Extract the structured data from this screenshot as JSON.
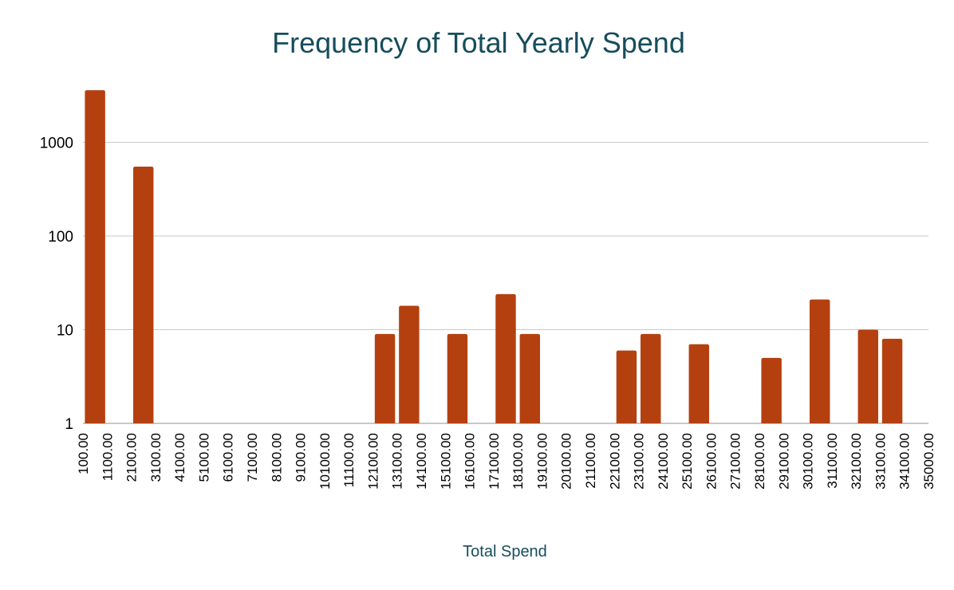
{
  "chart_data": {
    "type": "bar",
    "title": "Frequency of Total Yearly Spend",
    "xlabel": "Total Spend",
    "ylabel": "",
    "yscale": "log",
    "ylim": [
      1,
      4000
    ],
    "yticks": [
      1,
      10,
      100,
      1000
    ],
    "ytick_labels": [
      "1",
      "10",
      "100",
      "1000"
    ],
    "grid": true,
    "legend": "none",
    "bar_color": "#b5400f",
    "categories": [
      "100.00",
      "1100.00",
      "2100.00",
      "3100.00",
      "4100.00",
      "5100.00",
      "6100.00",
      "7100.00",
      "8100.00",
      "9100.00",
      "10100.00",
      "11100.00",
      "12100.00",
      "13100.00",
      "14100.00",
      "15100.00",
      "16100.00",
      "17100.00",
      "18100.00",
      "19100.00",
      "20100.00",
      "21100.00",
      "22100.00",
      "23100.00",
      "24100.00",
      "25100.00",
      "26100.00",
      "27100.00",
      "28100.00",
      "29100.00",
      "30100.00",
      "31100.00",
      "32100.00",
      "33100.00",
      "34100.00"
    ],
    "end_label": "35000.00",
    "values": [
      3600,
      0,
      550,
      0,
      0,
      0,
      0,
      0,
      0,
      0,
      0,
      0,
      9,
      18,
      0,
      9,
      0,
      24,
      9,
      0,
      0,
      0,
      6,
      9,
      0,
      7,
      0,
      0,
      5,
      0,
      21,
      0,
      10,
      8,
      0
    ]
  }
}
